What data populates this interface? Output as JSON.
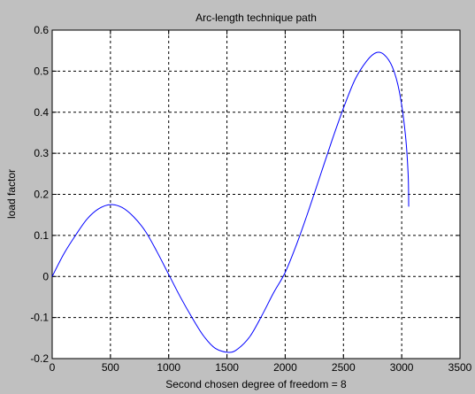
{
  "chart_data": {
    "type": "line",
    "title": "Arc-length technique path",
    "xlabel": "Second chosen degree of freedom = 8",
    "ylabel": "load factor",
    "xlim": [
      0,
      3500
    ],
    "ylim": [
      -0.2,
      0.6
    ],
    "x_ticks": [
      "0",
      "500",
      "1000",
      "1500",
      "2000",
      "2500",
      "3000",
      "3500"
    ],
    "y_ticks": [
      "-0.2",
      "-0.1",
      "0",
      "0.1",
      "0.2",
      "0.3",
      "0.4",
      "0.5",
      "0.6"
    ],
    "grid": true,
    "colors": {
      "line": "#0000ff",
      "background": "#c0c0c0",
      "plot_area": "#ffffff"
    },
    "series": [
      {
        "points": [
          [
            0,
            0.0
          ],
          [
            100,
            0.055
          ],
          [
            200,
            0.1
          ],
          [
            300,
            0.14
          ],
          [
            400,
            0.165
          ],
          [
            500,
            0.175
          ],
          [
            600,
            0.168
          ],
          [
            700,
            0.145
          ],
          [
            800,
            0.11
          ],
          [
            900,
            0.06
          ],
          [
            1000,
            0.005
          ],
          [
            1100,
            -0.05
          ],
          [
            1200,
            -0.1
          ],
          [
            1300,
            -0.145
          ],
          [
            1400,
            -0.175
          ],
          [
            1520,
            -0.185
          ],
          [
            1600,
            -0.175
          ],
          [
            1700,
            -0.145
          ],
          [
            1800,
            -0.095
          ],
          [
            1900,
            -0.04
          ],
          [
            2000,
            0.01
          ],
          [
            2100,
            0.08
          ],
          [
            2200,
            0.16
          ],
          [
            2300,
            0.245
          ],
          [
            2400,
            0.33
          ],
          [
            2500,
            0.41
          ],
          [
            2600,
            0.48
          ],
          [
            2700,
            0.525
          ],
          [
            2780,
            0.545
          ],
          [
            2850,
            0.54
          ],
          [
            2920,
            0.51
          ],
          [
            2980,
            0.45
          ],
          [
            3030,
            0.35
          ],
          [
            3055,
            0.25
          ],
          [
            3060,
            0.17
          ]
        ]
      }
    ]
  }
}
